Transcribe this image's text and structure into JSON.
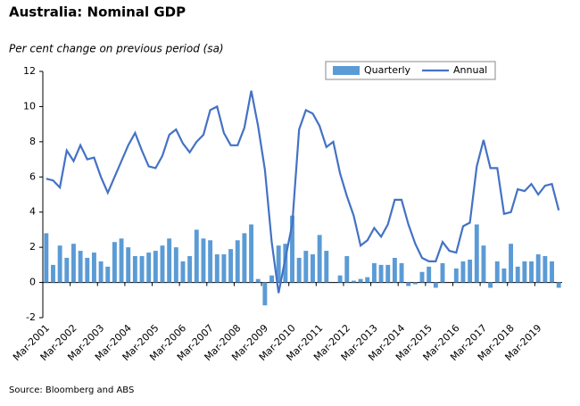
{
  "chart_data": {
    "type": "bar-line",
    "title": "Australia: Nominal GDP",
    "subtitle": "Per cent change on previous period (sa)",
    "source": "Source: Bloomberg and ABS",
    "categories": [
      "Mar-2001",
      null,
      null,
      null,
      "Mar-2002",
      null,
      null,
      null,
      "Mar-2003",
      null,
      null,
      null,
      "Mar-2004",
      null,
      null,
      null,
      "Mar-2005",
      null,
      null,
      null,
      "Mar-2006",
      null,
      null,
      null,
      "Mar-2007",
      null,
      null,
      null,
      "Mar-2008",
      null,
      null,
      null,
      "Mar-2009",
      null,
      null,
      null,
      "Mar-2010",
      null,
      null,
      null,
      "Mar-2011",
      null,
      null,
      null,
      "Mar-2012",
      null,
      null,
      null,
      "Mar-2013",
      null,
      null,
      null,
      "Mar-2014",
      null,
      null,
      null,
      "Mar-2015",
      null,
      null,
      null,
      "Mar-2016",
      null,
      null,
      null,
      "Mar-2017",
      null,
      null,
      null,
      "Mar-2018",
      null,
      null,
      null,
      "Mar-2019",
      null,
      null,
      null
    ],
    "series": [
      {
        "name": "Quarterly",
        "kind": "bar",
        "color": "#5b9bd5",
        "values": [
          2.8,
          1.0,
          2.1,
          1.4,
          2.2,
          1.8,
          1.4,
          1.7,
          1.2,
          0.9,
          2.3,
          2.5,
          2.0,
          1.5,
          1.5,
          1.7,
          1.8,
          2.1,
          2.5,
          2.0,
          1.2,
          1.5,
          3.0,
          2.5,
          2.4,
          1.6,
          1.6,
          1.9,
          2.4,
          2.8,
          3.3,
          0.2,
          -1.3,
          0.4,
          2.1,
          2.2,
          3.8,
          1.4,
          1.8,
          1.6,
          2.7,
          1.8,
          0.0,
          0.4,
          1.5,
          0.1,
          0.2,
          0.3,
          1.1,
          1.0,
          1.0,
          1.4,
          1.1,
          -0.2,
          -0.1,
          0.6,
          0.9,
          -0.3,
          1.1,
          0.0,
          0.8,
          1.2,
          1.3,
          3.3,
          2.1,
          -0.3,
          1.2,
          0.8,
          2.2,
          0.9,
          1.2,
          1.2,
          1.6,
          1.5,
          1.2,
          -0.3
        ]
      },
      {
        "name": "Annual",
        "kind": "line",
        "color": "#4472c4",
        "values": [
          5.9,
          5.8,
          5.4,
          7.5,
          6.9,
          7.8,
          7.0,
          7.1,
          6.0,
          5.1,
          6.0,
          6.9,
          7.8,
          8.5,
          7.5,
          6.6,
          6.5,
          7.2,
          8.4,
          8.7,
          7.9,
          7.4,
          8.0,
          8.4,
          9.8,
          10.0,
          8.5,
          7.8,
          7.8,
          8.8,
          10.9,
          8.9,
          6.4,
          2.3,
          -0.6,
          1.4,
          3.3,
          8.7,
          9.8,
          9.6,
          8.9,
          7.7,
          8.0,
          6.2,
          4.9,
          3.8,
          2.1,
          2.4,
          3.1,
          2.6,
          3.3,
          4.7,
          4.7,
          3.3,
          2.2,
          1.4,
          1.2,
          1.2,
          2.3,
          1.8,
          1.7,
          3.2,
          3.4,
          6.6,
          8.1,
          6.5,
          6.5,
          3.9,
          4.0,
          5.3,
          5.2,
          5.6,
          5.0,
          5.5,
          5.6,
          4.1
        ]
      }
    ],
    "ylim": [
      -2,
      12
    ],
    "yticks": [
      -2,
      0,
      2,
      4,
      6,
      8,
      10,
      12
    ],
    "legend": "top-right"
  }
}
